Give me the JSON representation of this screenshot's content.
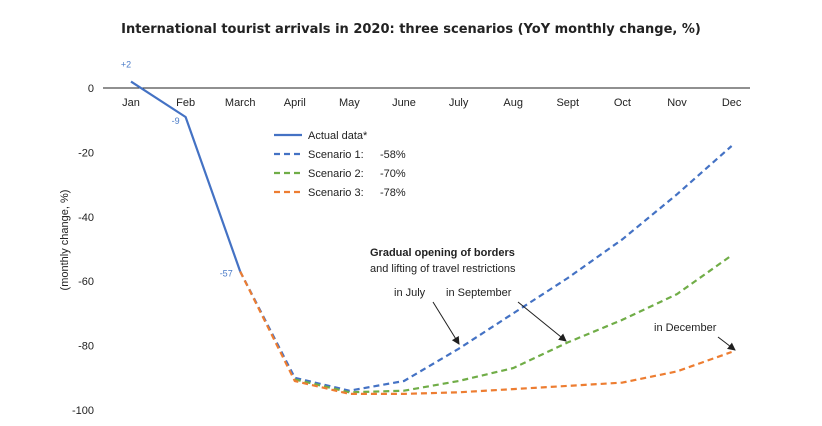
{
  "chart_data": {
    "type": "line",
    "title": "International tourist arrivals in 2020: three scenarios (YoY monthly change, %)",
    "ylabel": "(monthly change, %)",
    "xlabel": "",
    "ylim": [
      -100,
      0
    ],
    "yticks": [
      0,
      -20,
      -40,
      -60,
      -80,
      -100
    ],
    "categories": [
      "Jan",
      "Feb",
      "March",
      "April",
      "May",
      "June",
      "July",
      "Aug",
      "Sept",
      "Oct",
      "Nov",
      "Dec"
    ],
    "series": [
      {
        "name": "Actual data*",
        "color": "#4472c4",
        "style": "solid",
        "values": [
          2,
          -9,
          -57,
          null,
          null,
          null,
          null,
          null,
          null,
          null,
          null,
          null
        ]
      },
      {
        "name": "Scenario 1:",
        "value_label": "-58%",
        "color": "#4472c4",
        "style": "dashed",
        "values": [
          null,
          null,
          -57,
          -90,
          -94,
          -91,
          -81,
          -70,
          -59,
          -47,
          -33,
          -18
        ]
      },
      {
        "name": "Scenario 2:",
        "value_label": "-70%",
        "color": "#70ad47",
        "style": "dashed",
        "values": [
          null,
          null,
          null,
          -90.5,
          -94.5,
          -94,
          -91,
          -87,
          -79,
          -72,
          -64,
          -52
        ]
      },
      {
        "name": "Scenario 3:",
        "value_label": "-78%",
        "color": "#ed7d31",
        "style": "dashed",
        "values": [
          null,
          null,
          -57,
          -91,
          -95,
          -95,
          -94.5,
          -93.5,
          -92.5,
          -91.5,
          -88,
          -82
        ]
      }
    ],
    "point_labels": [
      {
        "category": "Jan",
        "value": 2,
        "text": "+2"
      },
      {
        "category": "Feb",
        "value": -9,
        "text": "-9"
      },
      {
        "category": "March",
        "value": -57,
        "text": "-57"
      }
    ],
    "annotations": {
      "heading": "Gradual opening of borders",
      "subheading": "and lifting of travel restrictions",
      "in_july": "in July",
      "in_september": "in September",
      "in_december": "in December"
    }
  }
}
